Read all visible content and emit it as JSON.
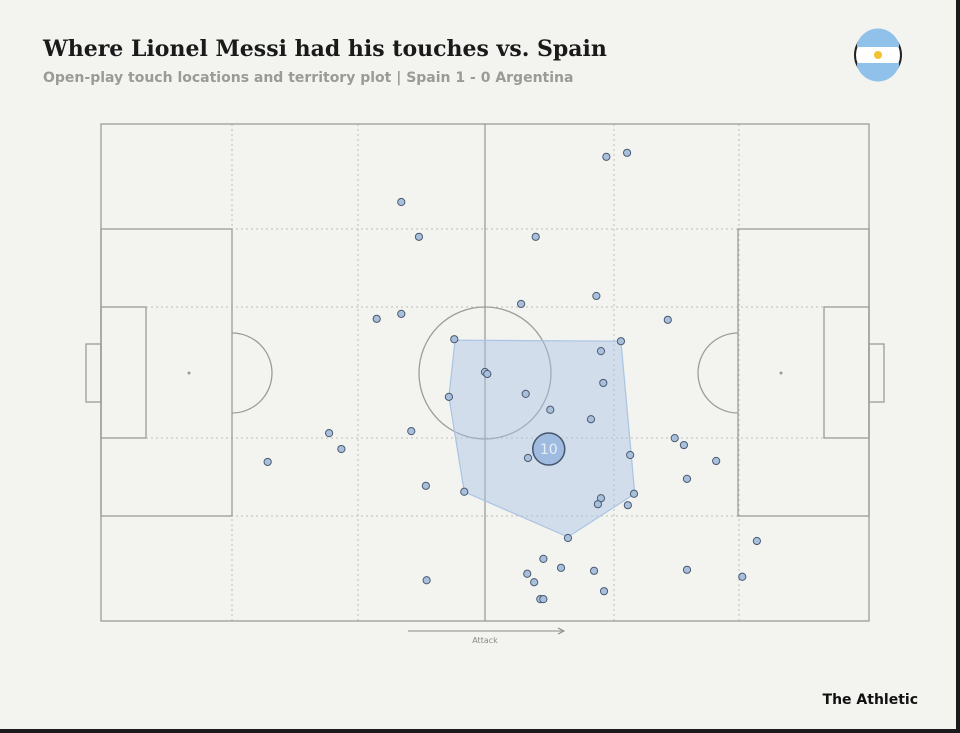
{
  "chart_data": {
    "type": "scatter",
    "title": "Where Lionel Messi had his touches vs. Spain",
    "subtitle": "Open-play touch locations and territory plot |  Spain 1 - 0 Argentina",
    "direction_label": "Attack",
    "source": "The Athletic",
    "xlim": [
      0,
      100
    ],
    "ylim": [
      100,
      0
    ],
    "color": "#a9c0dc",
    "x": [
      65.8,
      68.5,
      39.1,
      41.4,
      56.6,
      54.7,
      64.5,
      35.9,
      39.1,
      73.8,
      46.0,
      67.7,
      65.1,
      50.0,
      50.3,
      65.4,
      55.3,
      45.3,
      58.5,
      63.8,
      40.4,
      29.7,
      31.3,
      74.7,
      75.9,
      55.6,
      68.9,
      21.7,
      80.1,
      76.3,
      42.3,
      47.3,
      69.4,
      65.1,
      64.7,
      68.6,
      60.8,
      85.4,
      57.6,
      59.9,
      55.5,
      64.2,
      76.3,
      56.4,
      83.5,
      42.4,
      65.5,
      57.2,
      57.6
    ],
    "y": [
      6.6,
      5.8,
      15.7,
      22.7,
      22.7,
      36.2,
      34.6,
      39.2,
      38.2,
      39.4,
      43.3,
      43.7,
      45.7,
      49.9,
      50.3,
      52.1,
      54.3,
      54.9,
      57.5,
      59.4,
      61.8,
      62.2,
      65.4,
      63.2,
      64.6,
      67.2,
      66.6,
      68.0,
      67.8,
      71.4,
      72.8,
      74.0,
      74.4,
      75.3,
      76.5,
      76.7,
      83.3,
      83.9,
      87.5,
      89.3,
      90.5,
      89.9,
      89.7,
      92.2,
      91.1,
      91.8,
      94.0,
      95.6,
      95.6
    ],
    "territory": {
      "color": "#a9c4e4",
      "x": [
        46.1,
        67.7,
        69.5,
        60.8,
        47.3,
        45.3
      ],
      "y": [
        43.5,
        43.7,
        74.4,
        83.1,
        74.0,
        54.9
      ]
    },
    "average_position": {
      "label": "10",
      "x": 58.3,
      "y": 65.4,
      "color": "#9fbbe0"
    }
  }
}
